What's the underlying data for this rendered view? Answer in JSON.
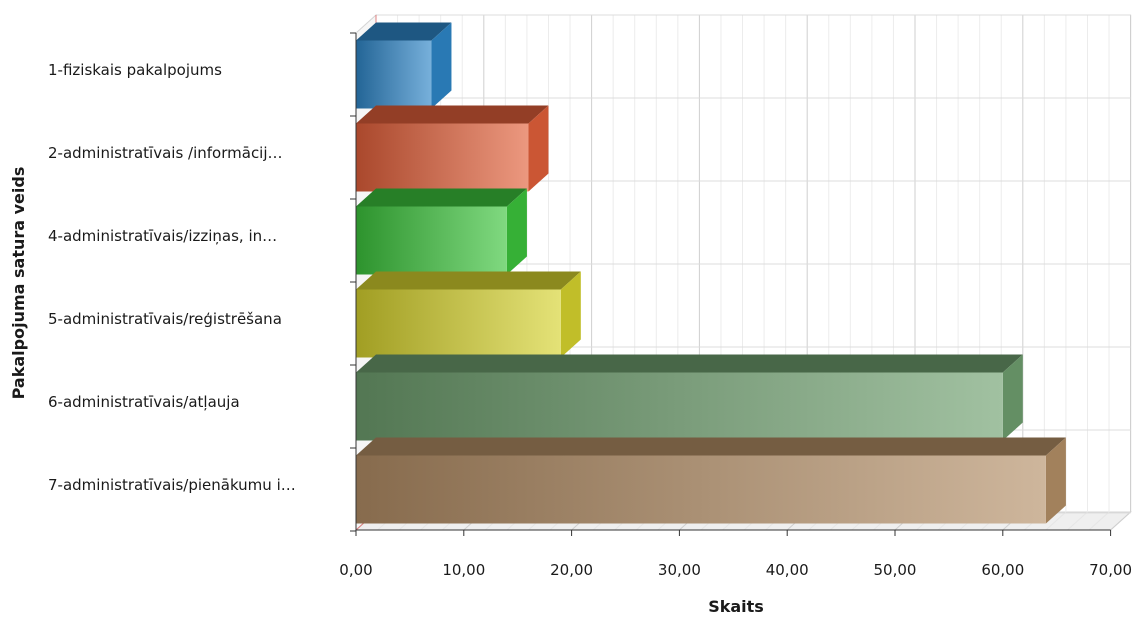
{
  "chart_data": {
    "type": "bar",
    "orientation": "horizontal",
    "style": "3d",
    "categories": [
      "1-fiziskais pakalpojums",
      "2-administratīvais /informācij…",
      "4-administratīvais/izziņas, in…",
      "5-administratīvais/reģistrēšana",
      "6-administratīvais/atļauja",
      "7-administratīvais/pienākumu i…"
    ],
    "values": [
      7,
      16,
      14,
      19,
      60,
      64
    ],
    "colors": [
      "#2e86c8",
      "#e2603a",
      "#3cc43c",
      "#d6d32e",
      "#6f9f6f",
      "#b48f66"
    ],
    "xlabel": "Skaits",
    "ylabel": "Pakalpojuma satura veids",
    "xlim": [
      0,
      70
    ],
    "xticks": [
      "0,00",
      "10,00",
      "20,00",
      "30,00",
      "40,00",
      "50,00",
      "60,00",
      "70,00"
    ],
    "grid": true,
    "legend": "none"
  }
}
